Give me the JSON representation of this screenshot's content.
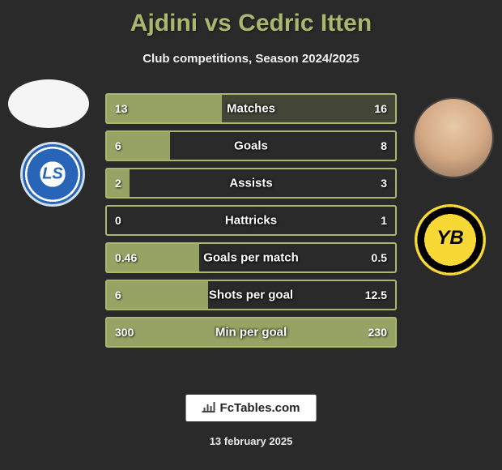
{
  "title": "Ajdini vs Cedric Itten",
  "subtitle": "Club competitions, Season 2024/2025",
  "footer_brand": "FcTables.com",
  "date": "13 february 2025",
  "colors": {
    "accent": "#a9b86e",
    "background": "#2a2a2a",
    "text_white": "#ffffff",
    "left_club_primary": "#2865b8",
    "right_club_primary": "#f8d835"
  },
  "players": {
    "left": {
      "name": "Ajdini",
      "club": "Lausanne Sport"
    },
    "right": {
      "name": "Cedric Itten",
      "club": "BSC Young Boys"
    }
  },
  "stats": [
    {
      "label": "Matches",
      "left_value": "13",
      "right_value": "16",
      "left_pct": 40,
      "right_pct": 60
    },
    {
      "label": "Goals",
      "left_value": "6",
      "right_value": "8",
      "left_pct": 22,
      "right_pct": 0
    },
    {
      "label": "Assists",
      "left_value": "2",
      "right_value": "3",
      "left_pct": 8,
      "right_pct": 0
    },
    {
      "label": "Hattricks",
      "left_value": "0",
      "right_value": "1",
      "left_pct": 0,
      "right_pct": 0
    },
    {
      "label": "Goals per match",
      "left_value": "0.46",
      "right_value": "0.5",
      "left_pct": 32,
      "right_pct": 0
    },
    {
      "label": "Shots per goal",
      "left_value": "6",
      "right_value": "12.5",
      "left_pct": 35,
      "right_pct": 0
    },
    {
      "label": "Min per goal",
      "left_value": "300",
      "right_value": "230",
      "left_pct": 100,
      "right_pct": 0
    }
  ]
}
